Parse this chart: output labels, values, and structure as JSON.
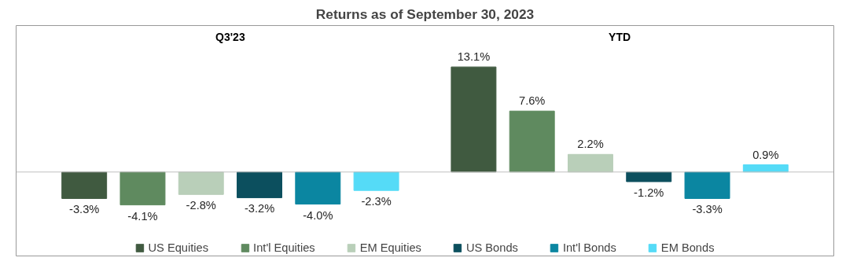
{
  "chart_data": {
    "type": "bar",
    "title": "Returns as of September 30, 2023",
    "categories": [
      "Q3'23",
      "YTD"
    ],
    "series": [
      {
        "name": "US Equities",
        "color": "#405a40",
        "values": [
          -3.3,
          13.1
        ],
        "value_labels": [
          "-3.3%",
          "13.1%"
        ]
      },
      {
        "name": "Int'l Equities",
        "color": "#5f8a5f",
        "values": [
          -4.1,
          7.6
        ],
        "value_labels": [
          "-4.1%",
          "7.6%"
        ]
      },
      {
        "name": "EM Equities",
        "color": "#b9cfb9",
        "values": [
          -2.8,
          2.2
        ],
        "value_labels": [
          "-2.8%",
          "2.2%"
        ]
      },
      {
        "name": "US Bonds",
        "color": "#0c4f5e",
        "values": [
          -3.2,
          -1.2
        ],
        "value_labels": [
          "-3.2%",
          "-1.2%"
        ]
      },
      {
        "name": "Int'l Bonds",
        "color": "#0b86a1",
        "values": [
          -4.0,
          -3.3
        ],
        "value_labels": [
          "-4.0%",
          "-3.3%"
        ]
      },
      {
        "name": "EM Bonds",
        "color": "#55dbf7",
        "values": [
          -2.3,
          0.9
        ],
        "value_labels": [
          "-2.3%",
          "0.9%"
        ]
      }
    ],
    "legend": "bottom"
  }
}
